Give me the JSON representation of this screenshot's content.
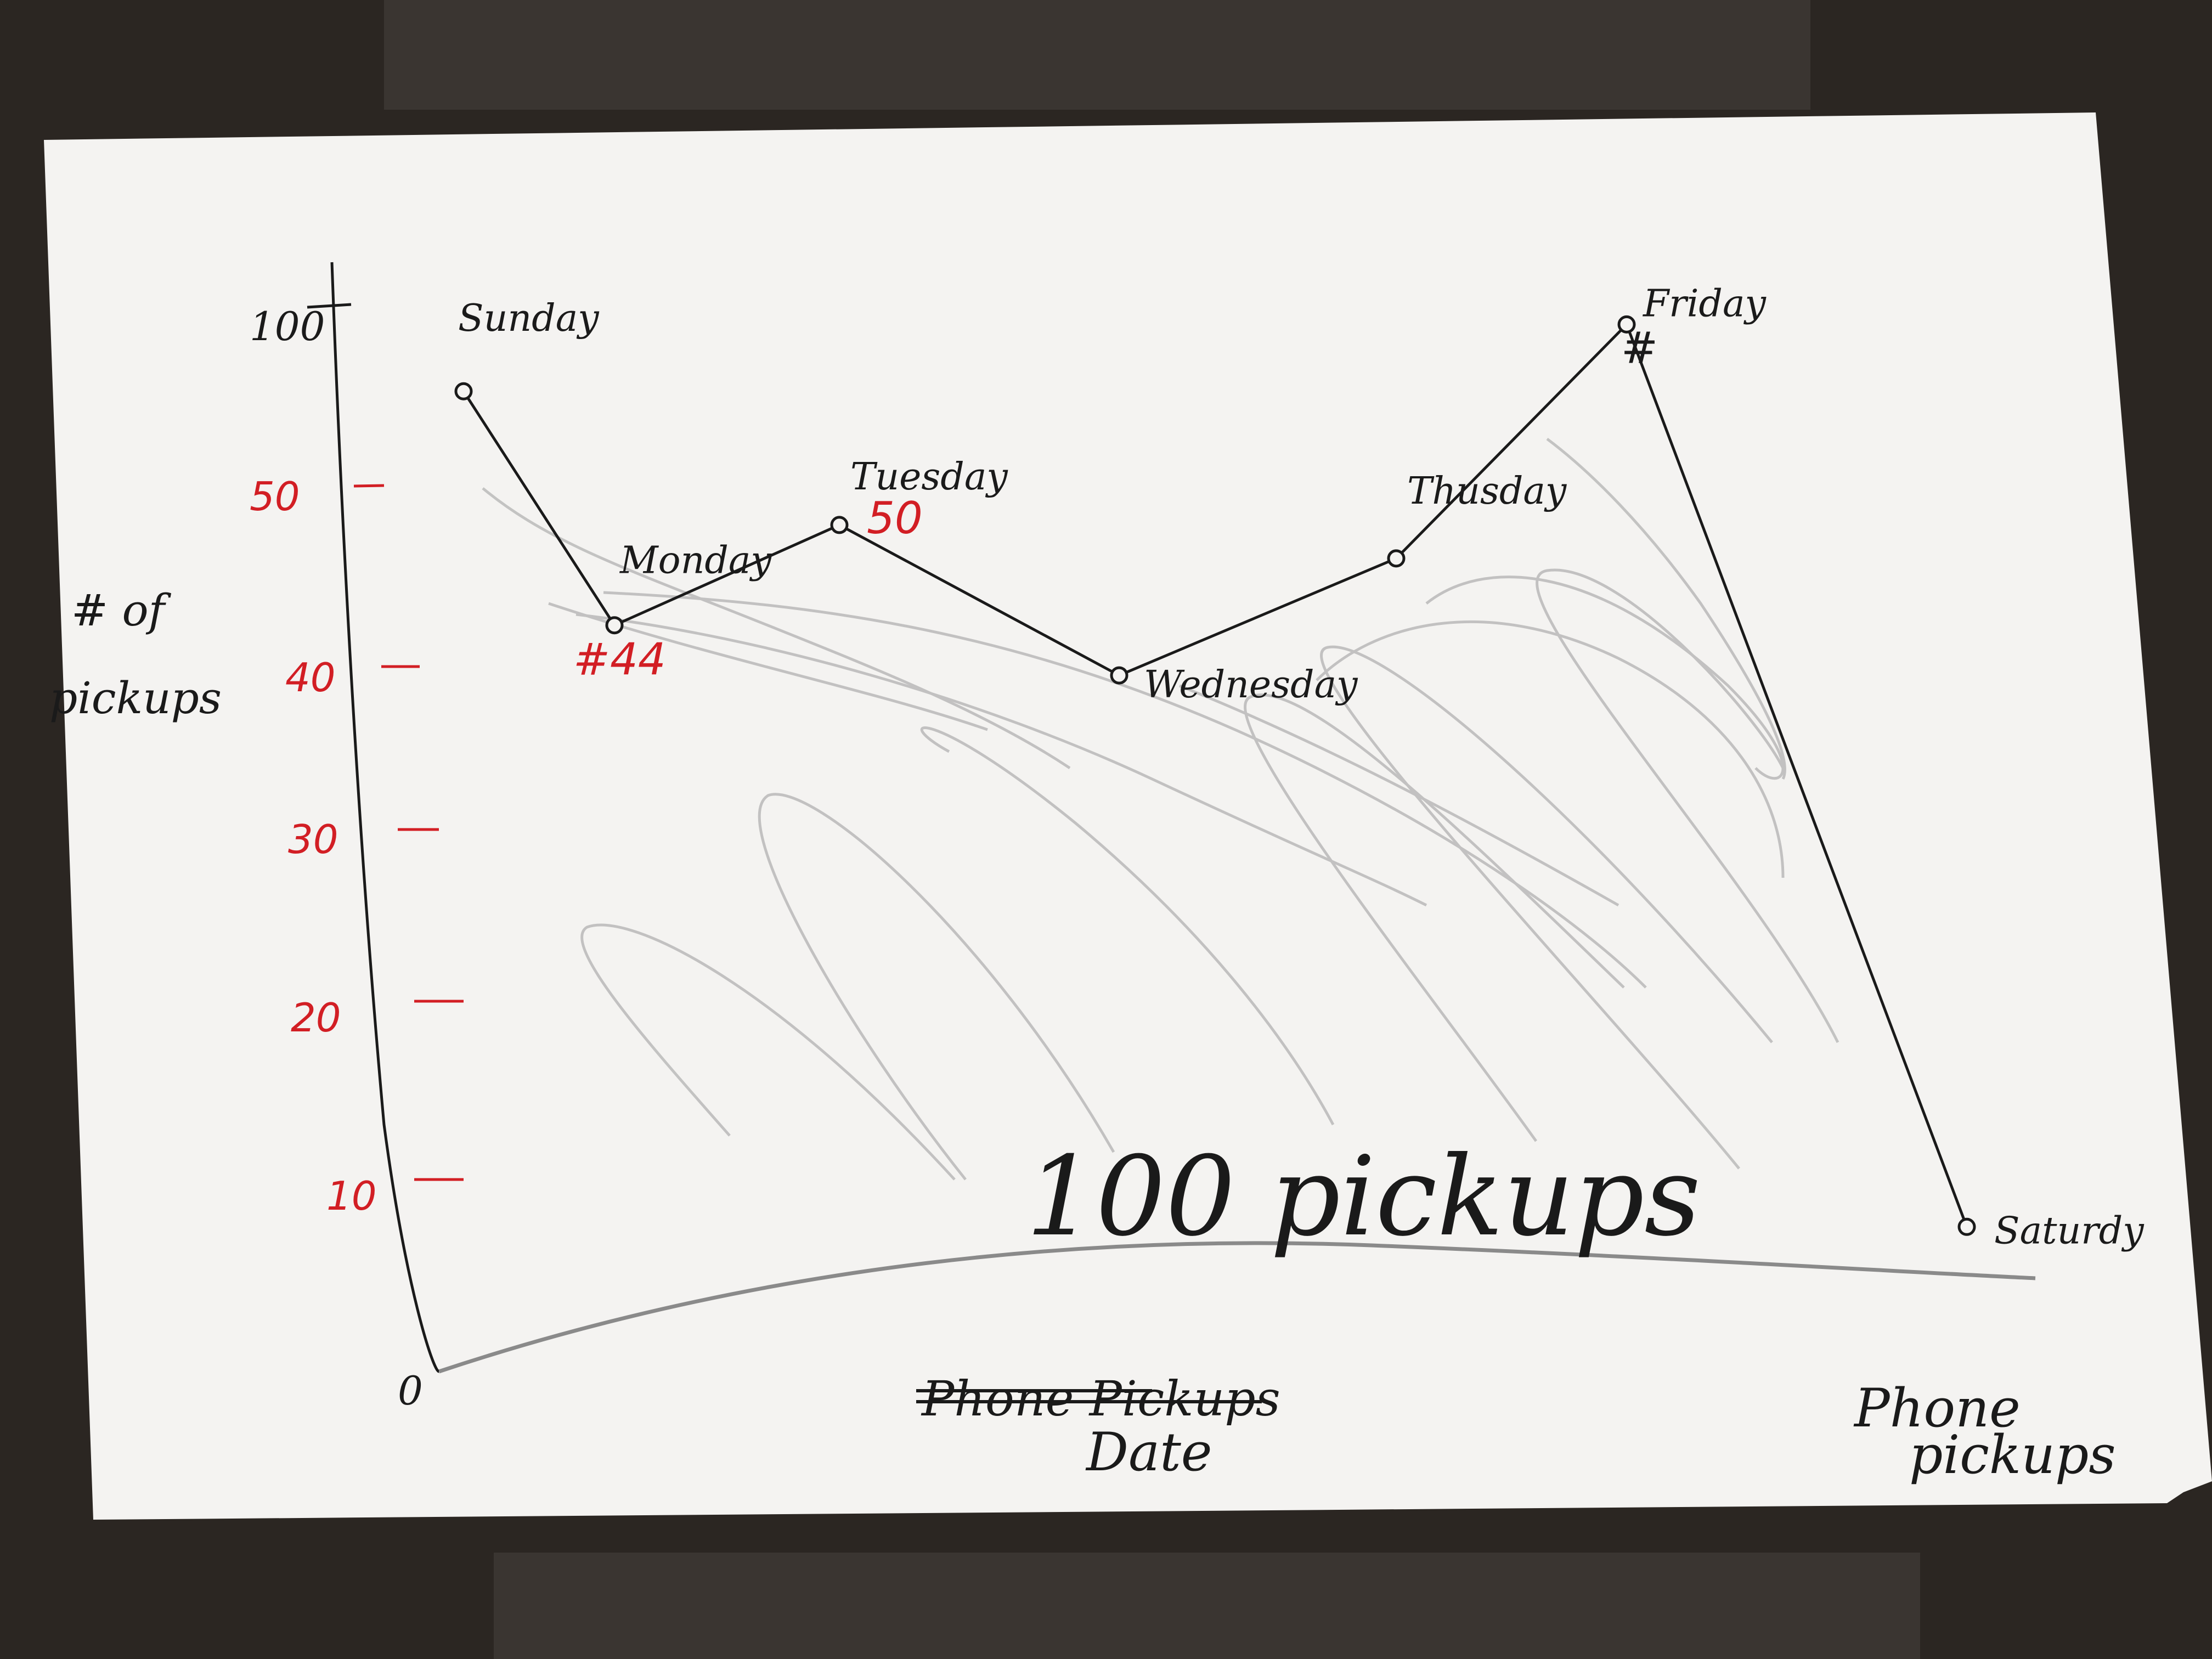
{
  "colors": {
    "table": "#2b2622",
    "paper": "#f4f3f1",
    "pencil": "#1a1a1a",
    "shading": "#9a9a9a",
    "red_marker": "#d21e24"
  },
  "chart_data": {
    "type": "line",
    "x": [
      "Sunday",
      "Monday",
      "Tuesday",
      "Wednesday",
      "Thusday",
      "Friday",
      "Saturdy"
    ],
    "values": [
      58,
      44,
      50,
      41,
      48,
      62,
      8
    ],
    "title": "100 pickups",
    "xlabel": "Date",
    "xlabel_struck": "Phone Pickups",
    "ylabel": "# of pickups",
    "corner_note": "Phone pickups",
    "y_tick_top": "100",
    "y_ticks": [
      "50",
      "40",
      "30",
      "20",
      "10"
    ],
    "y_origin": "0",
    "data_labels": [
      {
        "day_index": 1,
        "text": "#44"
      },
      {
        "day_index": 2,
        "text": "50"
      },
      {
        "day_index": 5,
        "text": "#"
      }
    ],
    "grid": false,
    "legend": "none"
  }
}
